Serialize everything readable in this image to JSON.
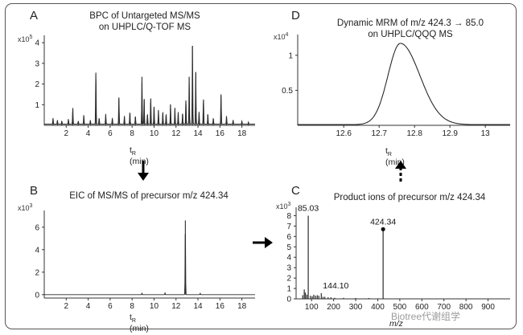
{
  "chart_data": [
    {
      "id": "A",
      "type": "line",
      "letter": "A",
      "title_lines": [
        "BPC of Untargeted MS/MS",
        "on UHPLC/Q-TOF MS"
      ],
      "y_exponent": "5",
      "xlabel": "t_R (min)",
      "xticks": [
        2,
        4,
        6,
        8,
        10,
        12,
        14,
        16,
        18
      ],
      "yticks": [
        1,
        2,
        3,
        4
      ],
      "xlim": [
        0,
        19.2
      ],
      "ylim": [
        0,
        4.2
      ],
      "series": [
        {
          "peaks": [
            [
              0.8,
              0.3
            ],
            [
              1.2,
              0.2
            ],
            [
              1.6,
              0.15
            ],
            [
              2.2,
              0.25
            ],
            [
              2.6,
              0.8
            ],
            [
              3.1,
              0.15
            ],
            [
              3.6,
              0.45
            ],
            [
              4.2,
              0.2
            ],
            [
              4.7,
              2.55
            ],
            [
              5.0,
              0.3
            ],
            [
              5.6,
              0.5
            ],
            [
              6.2,
              0.3
            ],
            [
              6.8,
              1.3
            ],
            [
              7.3,
              0.4
            ],
            [
              7.8,
              0.6
            ],
            [
              8.3,
              0.4
            ],
            [
              8.9,
              2.35
            ],
            [
              9.1,
              1.25
            ],
            [
              9.4,
              0.5
            ],
            [
              9.7,
              1.3
            ],
            [
              10.0,
              0.9
            ],
            [
              10.4,
              0.7
            ],
            [
              10.8,
              0.6
            ],
            [
              11.1,
              0.5
            ],
            [
              11.5,
              1.0
            ],
            [
              11.9,
              0.8
            ],
            [
              12.2,
              0.6
            ],
            [
              12.6,
              0.55
            ],
            [
              12.9,
              1.2
            ],
            [
              13.2,
              2.35
            ],
            [
              13.5,
              3.85
            ],
            [
              13.8,
              2.55
            ],
            [
              14.1,
              0.6
            ],
            [
              14.5,
              1.25
            ],
            [
              14.9,
              0.5
            ],
            [
              15.4,
              0.3
            ],
            [
              16.1,
              1.45
            ],
            [
              16.6,
              0.4
            ],
            [
              17.2,
              0.2
            ],
            [
              18.0,
              0.15
            ],
            [
              18.6,
              0.1
            ]
          ]
        }
      ]
    },
    {
      "id": "B",
      "type": "line",
      "letter": "B",
      "title_lines": [
        "EIC of MS/MS of precursor m/z 424.34"
      ],
      "y_exponent": "3",
      "xlabel": "t_R (min)",
      "xticks": [
        2,
        4,
        6,
        8,
        10,
        12,
        14,
        16,
        18
      ],
      "yticks": [
        0,
        2,
        4,
        6
      ],
      "xlim": [
        0,
        19.2
      ],
      "ylim": [
        -0.3,
        7.2
      ],
      "series": [
        {
          "peaks": [
            [
              12.85,
              6.6
            ],
            [
              8.9,
              0.15
            ],
            [
              11.0,
              0.15
            ],
            [
              14.2,
              0.12
            ]
          ]
        }
      ]
    },
    {
      "id": "C",
      "type": "bar",
      "letter": "C",
      "title_lines": [
        "Product ions of precursor m/z 424.34"
      ],
      "y_exponent": "3",
      "xlabel": "m/z",
      "xticks": [
        100,
        200,
        300,
        400,
        500,
        600,
        700,
        800,
        900
      ],
      "yticks": [
        0,
        1,
        2,
        3,
        4,
        5,
        6,
        7,
        8
      ],
      "xlim": [
        30,
        1000
      ],
      "ylim": [
        0,
        8.5
      ],
      "series": [
        {
          "sticks": [
            [
              85.03,
              8.0
            ],
            [
              144.1,
              0.55
            ],
            [
              424.34,
              6.7
            ],
            [
              60,
              0.35
            ],
            [
              67,
              0.9
            ],
            [
              72,
              0.6
            ],
            [
              79,
              0.4
            ],
            [
              95,
              0.3
            ],
            [
              103,
              0.25
            ],
            [
              110,
              0.4
            ],
            [
              118,
              0.3
            ],
            [
              126,
              0.35
            ],
            [
              133,
              0.3
            ],
            [
              152,
              0.2
            ],
            [
              160,
              0.2
            ],
            [
              175,
              0.15
            ],
            [
              188,
              0.15
            ],
            [
              205,
              0.1
            ],
            [
              245,
              0.1
            ],
            [
              300,
              0.08
            ],
            [
              360,
              0.08
            ]
          ]
        }
      ],
      "annotations": [
        "85.03",
        "144.10",
        "424.34"
      ]
    },
    {
      "id": "D",
      "type": "line",
      "letter": "D",
      "title_lines": [
        "Dynamic MRM of m/z 424.3 → 85.0",
        "on UHPLC/QQQ MS"
      ],
      "y_exponent": "4",
      "xlabel": "t_R (min)",
      "xticks": [
        12.6,
        12.7,
        12.8,
        12.9,
        13
      ],
      "yticks": [
        0.5,
        1.0
      ],
      "xlim": [
        12.47,
        13.07
      ],
      "ylim": [
        0,
        1.25
      ],
      "series": [
        {
          "peak": {
            "center": 12.76,
            "height": 1.16,
            "sigma_left": 0.035,
            "sigma_right": 0.055
          }
        }
      ]
    }
  ],
  "watermark": "Biotree代谢组学",
  "colors": {
    "line": "#2a2a2a",
    "axis": "#333333",
    "frame": "#555555"
  }
}
